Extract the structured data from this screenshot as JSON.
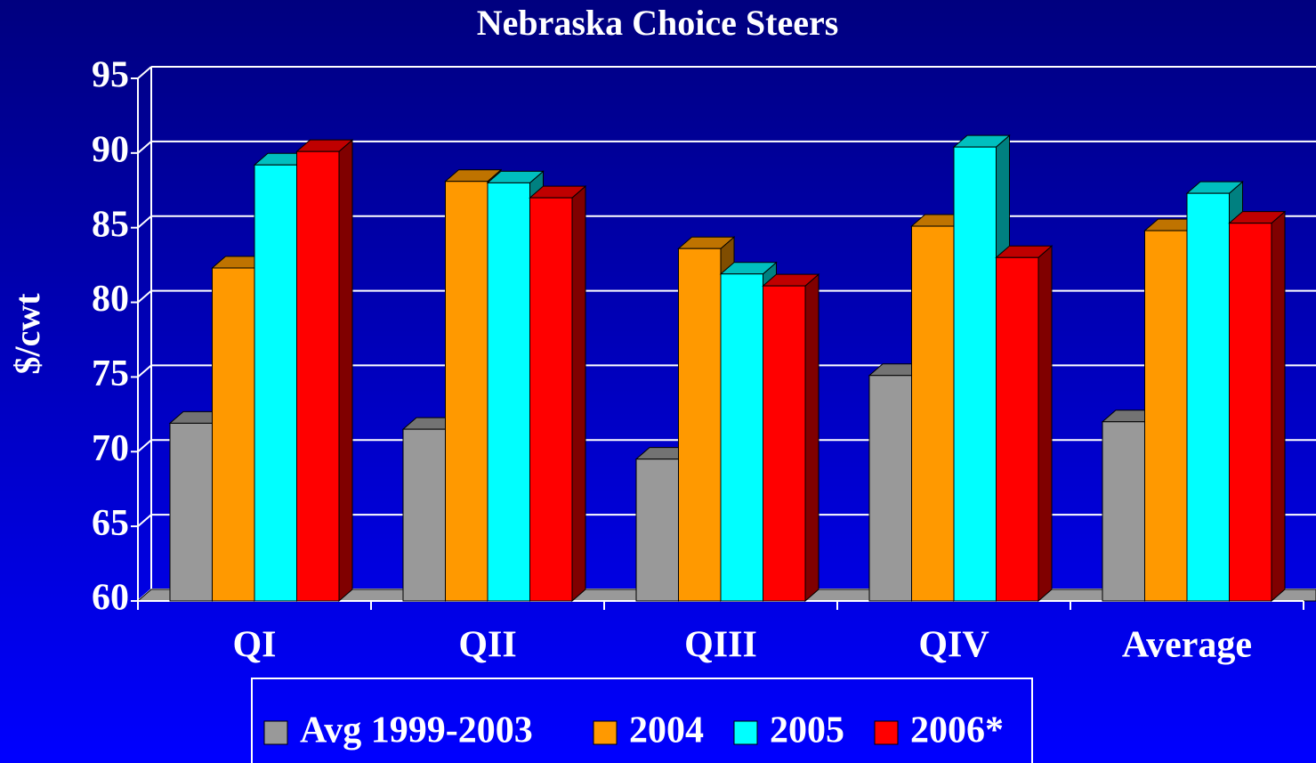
{
  "chart_data": {
    "type": "bar3d",
    "title": "Nebraska Choice Steers",
    "y_label": "$/cwt",
    "categories": [
      "QI",
      "QII",
      "QIII",
      "QIV",
      "Average"
    ],
    "series": [
      {
        "name": "Avg 1999-2003",
        "color": "#999999",
        "values": [
          71.9,
          71.5,
          69.5,
          75.1,
          72.0
        ]
      },
      {
        "name": "2004",
        "color": "#ff9900",
        "values": [
          82.3,
          88.1,
          83.6,
          85.1,
          84.8
        ]
      },
      {
        "name": "2005",
        "color": "#00ffff",
        "values": [
          89.2,
          88.0,
          81.9,
          90.4,
          87.3
        ]
      },
      {
        "name": "2006*",
        "color": "#ff0000",
        "values": [
          90.1,
          87.0,
          81.1,
          83.0,
          85.3
        ]
      }
    ],
    "ylim": [
      60,
      95
    ],
    "yticks": [
      60,
      65,
      70,
      75,
      80,
      85,
      90,
      95
    ],
    "grid": true,
    "legend": "bottom"
  }
}
